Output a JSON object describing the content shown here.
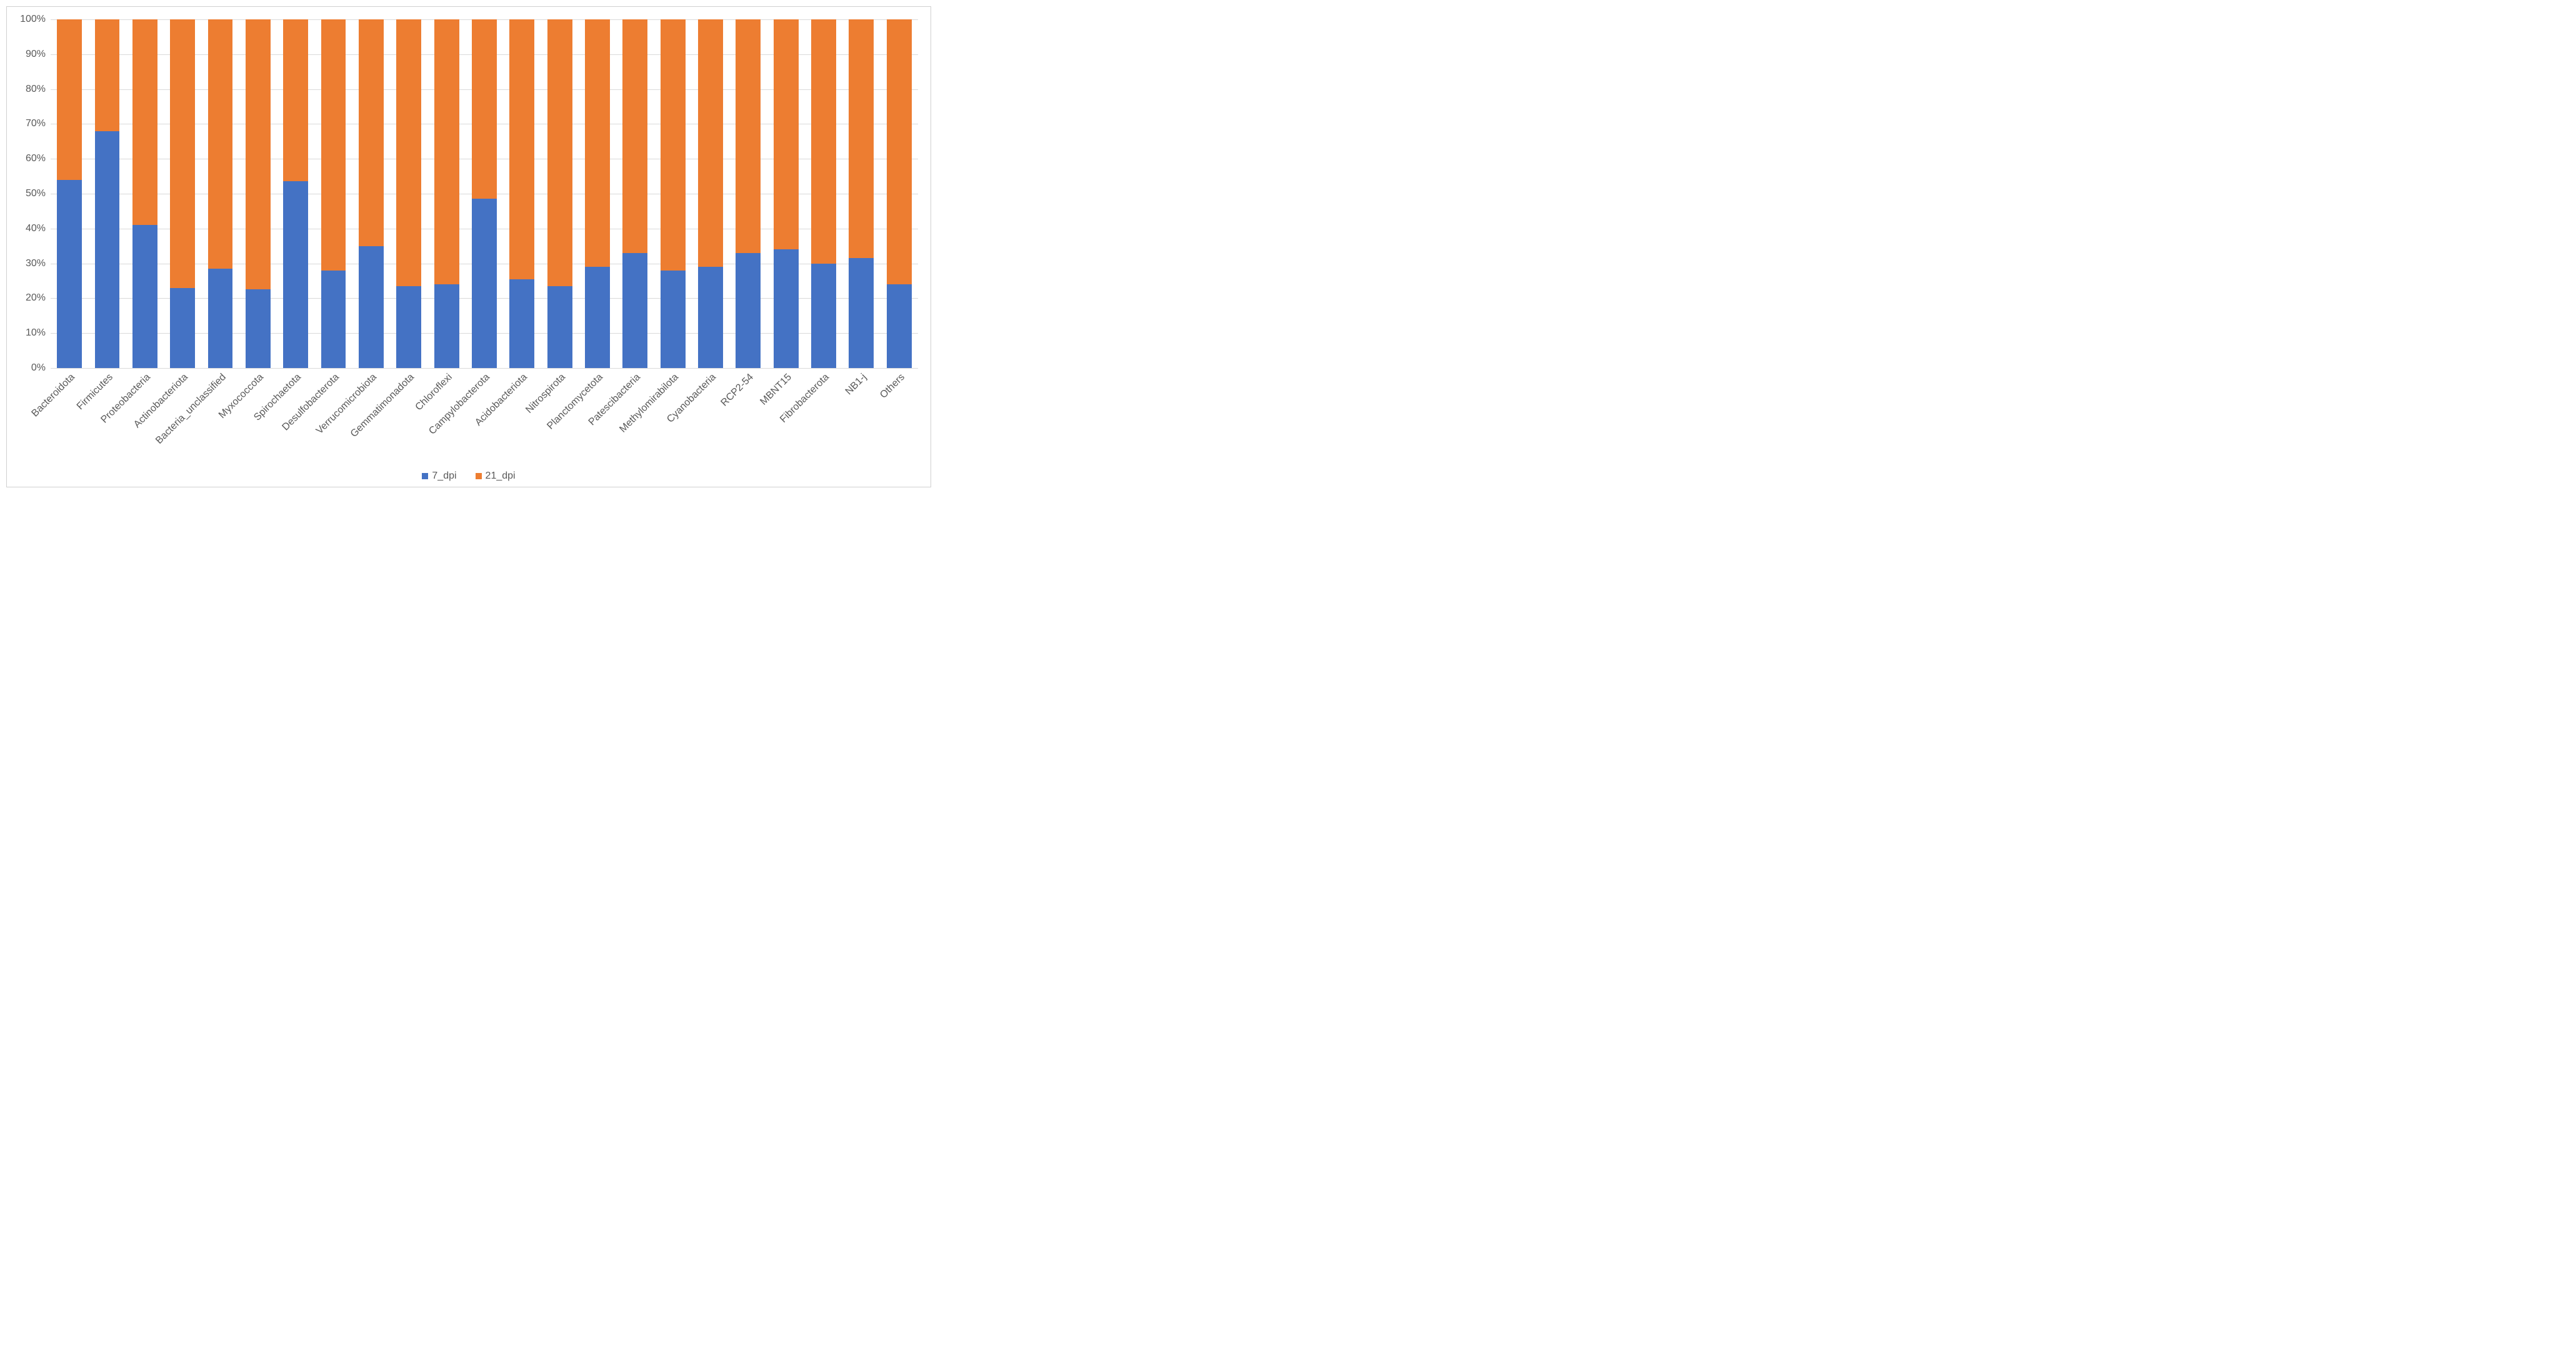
{
  "chart": {
    "type": "stacked-bar-100",
    "ylim": [
      0,
      100
    ],
    "ytick_step": 10,
    "grid_color": "#d9d9d9",
    "background_color": "#ffffff",
    "border_color": "#d0d0d0",
    "label_color": "#595959",
    "label_fontsize": 16,
    "bar_width_ratio": 0.66,
    "categories": [
      "Bacteroidota",
      "Firmicutes",
      "Proteobacteria",
      "Actinobacteriota",
      "Bacteria_unclassified",
      "Myxococcota",
      "Spirochaetota",
      "Desulfobacterota",
      "Verrucomicrobiota",
      "Gemmatimonadota",
      "Chloroflexi",
      "Campylobacterota",
      "Acidobacteriota",
      "Nitrospirota",
      "Planctomycetota",
      "Patescibacteria",
      "Methylomirabilota",
      "Cyanobacteria",
      "RCP2-54",
      "MBNT15",
      "Fibrobacterota",
      "NB1-j",
      "Others"
    ],
    "series": [
      {
        "name": "7_dpi",
        "color": "#4472c4",
        "values": [
          54,
          68,
          41,
          23,
          28.5,
          22.5,
          53.5,
          28,
          35,
          23.5,
          24,
          48.5,
          25.5,
          23.5,
          29,
          33,
          28,
          29,
          33,
          34,
          30,
          31.5,
          24
        ]
      },
      {
        "name": "21_dpi",
        "color": "#ed7d31",
        "values": [
          46,
          32,
          59,
          77,
          71.5,
          77.5,
          46.5,
          72,
          65,
          76.5,
          76,
          51.5,
          74.5,
          76.5,
          71,
          67,
          72,
          71,
          67,
          66,
          70,
          68.5,
          76
        ]
      }
    ],
    "legend_position": "bottom",
    "y_suffix": "%"
  }
}
